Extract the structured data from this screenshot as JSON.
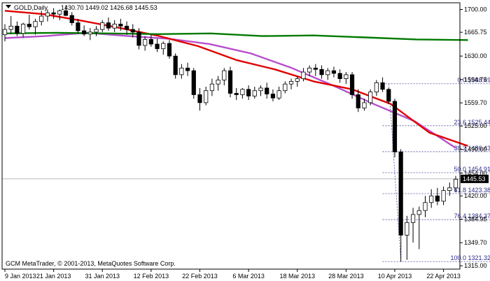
{
  "header": {
    "symbol": "GOLD,Daily",
    "ohlc": "1430.70 1449.02 1426.68 1445.53"
  },
  "copyright": "GCM MetaTrader, © 2001-2013, MetaQuotes Software Corp.",
  "current_price_label": "1445.53",
  "colors": {
    "background": "#ffffff",
    "axis": "#000000",
    "bull_candle": "#ffffff",
    "bear_candle": "#000000",
    "ma_fast": "#b84fcc",
    "ma_mid": "#e00000",
    "ma_slow": "#007a00",
    "fib": "#4a4aa0"
  },
  "chart_data": {
    "type": "candlestick",
    "x_ticks": [
      "9 Jan 2013",
      "21 Jan 2013",
      "31 Jan 2013",
      "12 Feb 2013",
      "22 Feb 2013",
      "6 Mar 2013",
      "18 Mar 2013",
      "28 Mar 2013",
      "10 Apr 2013",
      "22 Apr 2013"
    ],
    "y_ticks": [
      "1700.00",
      "1665.75",
      "1630.00",
      "1594.75",
      "1559.70",
      "1525.00",
      "1490.00",
      "1454.00",
      "1420.00",
      "1384.95",
      "1349.70",
      "1315.00"
    ],
    "ylim": [
      1310,
      1710
    ],
    "candles": [
      [
        1662,
        1678,
        1652,
        1670
      ],
      [
        1670,
        1690,
        1663,
        1675
      ],
      [
        1675,
        1682,
        1660,
        1664
      ],
      [
        1664,
        1680,
        1658,
        1678
      ],
      [
        1678,
        1692,
        1670,
        1674
      ],
      [
        1674,
        1686,
        1662,
        1682
      ],
      [
        1682,
        1698,
        1676,
        1690
      ],
      [
        1690,
        1700,
        1682,
        1695
      ],
      [
        1695,
        1702,
        1686,
        1693
      ],
      [
        1693,
        1700,
        1684,
        1698
      ],
      [
        1698,
        1706,
        1690,
        1691
      ],
      [
        1691,
        1696,
        1676,
        1680
      ],
      [
        1680,
        1686,
        1664,
        1668
      ],
      [
        1668,
        1676,
        1660,
        1663
      ],
      [
        1663,
        1672,
        1654,
        1666
      ],
      [
        1666,
        1675,
        1660,
        1670
      ],
      [
        1670,
        1684,
        1666,
        1680
      ],
      [
        1680,
        1688,
        1668,
        1672
      ],
      [
        1672,
        1684,
        1666,
        1678
      ],
      [
        1678,
        1686,
        1668,
        1675
      ],
      [
        1675,
        1682,
        1662,
        1670
      ],
      [
        1670,
        1678,
        1658,
        1666
      ],
      [
        1666,
        1672,
        1640,
        1646
      ],
      [
        1646,
        1660,
        1638,
        1655
      ],
      [
        1655,
        1662,
        1644,
        1648
      ],
      [
        1648,
        1656,
        1636,
        1641
      ],
      [
        1641,
        1652,
        1632,
        1649
      ],
      [
        1649,
        1654,
        1626,
        1630
      ],
      [
        1630,
        1634,
        1596,
        1602
      ],
      [
        1602,
        1618,
        1596,
        1612
      ],
      [
        1612,
        1620,
        1600,
        1608
      ],
      [
        1608,
        1612,
        1566,
        1572
      ],
      [
        1572,
        1582,
        1548,
        1560
      ],
      [
        1560,
        1584,
        1556,
        1578
      ],
      [
        1578,
        1596,
        1570,
        1588
      ],
      [
        1588,
        1600,
        1578,
        1594
      ],
      [
        1594,
        1612,
        1586,
        1608
      ],
      [
        1608,
        1614,
        1568,
        1574
      ],
      [
        1574,
        1582,
        1564,
        1572
      ],
      [
        1572,
        1582,
        1566,
        1580
      ],
      [
        1580,
        1586,
        1564,
        1570
      ],
      [
        1570,
        1584,
        1566,
        1578
      ],
      [
        1578,
        1586,
        1570,
        1582
      ],
      [
        1582,
        1590,
        1566,
        1573
      ],
      [
        1573,
        1580,
        1562,
        1567
      ],
      [
        1567,
        1584,
        1564,
        1578
      ],
      [
        1578,
        1592,
        1574,
        1588
      ],
      [
        1588,
        1596,
        1580,
        1592
      ],
      [
        1592,
        1600,
        1584,
        1596
      ],
      [
        1596,
        1612,
        1592,
        1606
      ],
      [
        1606,
        1616,
        1600,
        1612
      ],
      [
        1612,
        1618,
        1600,
        1610
      ],
      [
        1610,
        1616,
        1596,
        1602
      ],
      [
        1602,
        1612,
        1594,
        1608
      ],
      [
        1608,
        1614,
        1598,
        1604
      ],
      [
        1604,
        1610,
        1590,
        1596
      ],
      [
        1596,
        1606,
        1588,
        1602
      ],
      [
        1602,
        1606,
        1566,
        1572
      ],
      [
        1572,
        1580,
        1546,
        1552
      ],
      [
        1552,
        1566,
        1548,
        1560
      ],
      [
        1560,
        1580,
        1556,
        1576
      ],
      [
        1576,
        1594,
        1570,
        1590
      ],
      [
        1590,
        1598,
        1576,
        1580
      ],
      [
        1580,
        1582,
        1558,
        1562
      ],
      [
        1562,
        1566,
        1478,
        1486
      ],
      [
        1486,
        1490,
        1321,
        1361
      ],
      [
        1361,
        1390,
        1324,
        1380
      ],
      [
        1380,
        1402,
        1350,
        1392
      ],
      [
        1392,
        1404,
        1340,
        1398
      ],
      [
        1398,
        1420,
        1388,
        1410
      ],
      [
        1410,
        1430,
        1402,
        1420
      ],
      [
        1420,
        1432,
        1406,
        1412
      ],
      [
        1412,
        1434,
        1406,
        1428
      ],
      [
        1428,
        1440,
        1420,
        1432
      ],
      [
        1432,
        1450,
        1426,
        1445
      ]
    ],
    "series": [
      {
        "values": [
          [
            0,
            1657
          ],
          [
            10,
            1660
          ],
          [
            20,
            1665
          ],
          [
            30,
            1660
          ],
          [
            40,
            1656
          ],
          [
            50,
            1648
          ],
          [
            60,
            1634
          ],
          [
            70,
            1612
          ],
          [
            80,
            1586
          ],
          [
            90,
            1558
          ],
          [
            100,
            1532
          ],
          [
            110,
            1492
          ]
        ]
      },
      {
        "values": [
          [
            0,
            1698
          ],
          [
            10,
            1693
          ],
          [
            20,
            1683
          ],
          [
            30,
            1672
          ],
          [
            40,
            1660
          ],
          [
            50,
            1645
          ],
          [
            60,
            1624
          ],
          [
            70,
            1610
          ],
          [
            80,
            1592
          ],
          [
            90,
            1580
          ],
          [
            100,
            1558
          ],
          [
            110,
            1515
          ],
          [
            120,
            1495
          ]
        ]
      },
      {
        "values": [
          [
            0,
            1664
          ],
          [
            10,
            1665
          ],
          [
            20,
            1664
          ],
          [
            30,
            1663
          ],
          [
            40,
            1664
          ],
          [
            50,
            1660
          ],
          [
            60,
            1661
          ],
          [
            70,
            1658
          ],
          [
            80,
            1655
          ],
          [
            90,
            1654
          ]
        ]
      }
    ],
    "fib_levels": [
      {
        "label": "0.0 1588.49",
        "value": 1588.49
      },
      {
        "label": "23.6 1525.44",
        "value": 1525.44
      },
      {
        "label": "38.2 1486.43",
        "value": 1486.43
      },
      {
        "label": "50.0 1454.91",
        "value": 1454.91
      },
      {
        "label": "61.8 1423.38",
        "value": 1423.38
      },
      {
        "label": "76.4 1384.37",
        "value": 1384.37
      },
      {
        "label": "100.0 1321.32",
        "value": 1321.32
      }
    ],
    "current_price": 1445.53
  }
}
